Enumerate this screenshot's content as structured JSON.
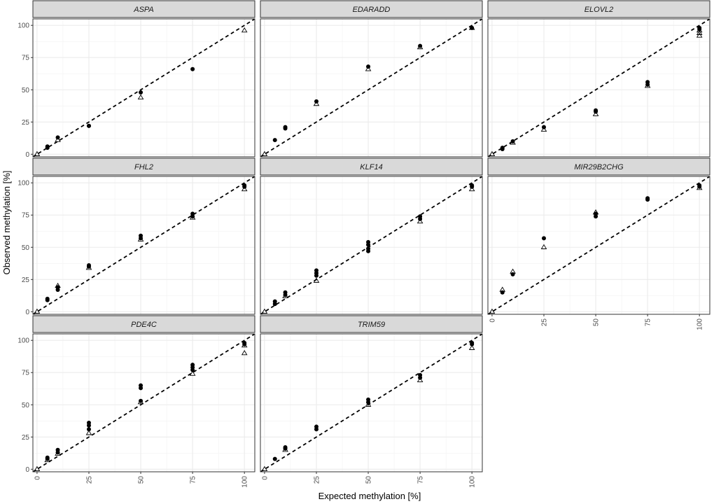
{
  "chart_data": {
    "type": "scatter",
    "xlabel": "Expected methylation [%]",
    "ylabel": "Observed methylation [%]",
    "x_ticks": [
      "0",
      "25",
      "50",
      "75",
      "100"
    ],
    "y_ticks": [
      "0",
      "25",
      "50",
      "75",
      "100"
    ],
    "xlim": [
      -2,
      105
    ],
    "ylim": [
      -2,
      105
    ],
    "grid": true,
    "reference_line": {
      "style": "dashed",
      "slope": 1,
      "intercept": 0
    },
    "marker_shapes": {
      "filled": "circle/triangle",
      "open": "triangle"
    },
    "panels": [
      {
        "title": "ASPA",
        "points": [
          [
            0,
            0,
            "open"
          ],
          [
            5,
            6,
            "filled"
          ],
          [
            5,
            5,
            "filled"
          ],
          [
            10,
            13,
            "filled"
          ],
          [
            10,
            11,
            "open"
          ],
          [
            25,
            22,
            "filled"
          ],
          [
            25,
            22,
            "filled"
          ],
          [
            50,
            48,
            "filled"
          ],
          [
            50,
            44,
            "open"
          ],
          [
            75,
            66,
            "filled"
          ],
          [
            100,
            96,
            "open"
          ]
        ]
      },
      {
        "title": "EDARADD",
        "points": [
          [
            0,
            0,
            "open"
          ],
          [
            5,
            11,
            "filled"
          ],
          [
            10,
            21,
            "filled"
          ],
          [
            10,
            20,
            "filled"
          ],
          [
            25,
            41,
            "filled"
          ],
          [
            25,
            39,
            "open"
          ],
          [
            50,
            68,
            "filled"
          ],
          [
            50,
            66,
            "open"
          ],
          [
            75,
            84,
            "filled"
          ],
          [
            75,
            83,
            "open"
          ],
          [
            100,
            98,
            "filled"
          ],
          [
            100,
            98,
            "open"
          ]
        ]
      },
      {
        "title": "ELOVL2",
        "points": [
          [
            0,
            0,
            "open"
          ],
          [
            5,
            5,
            "filled"
          ],
          [
            5,
            4,
            "filled"
          ],
          [
            10,
            10,
            "filled"
          ],
          [
            10,
            9,
            "open"
          ],
          [
            25,
            21,
            "filled"
          ],
          [
            25,
            19,
            "open"
          ],
          [
            50,
            34,
            "filled"
          ],
          [
            50,
            33,
            "filled"
          ],
          [
            50,
            31,
            "open"
          ],
          [
            75,
            56,
            "filled"
          ],
          [
            75,
            54,
            "filled"
          ],
          [
            75,
            53,
            "open"
          ],
          [
            100,
            98,
            "filled"
          ],
          [
            100,
            97,
            "filled"
          ],
          [
            100,
            96,
            "open"
          ],
          [
            100,
            94,
            "open"
          ],
          [
            100,
            92,
            "open"
          ]
        ]
      },
      {
        "title": "FHL2",
        "points": [
          [
            0,
            0,
            "open"
          ],
          [
            5,
            10,
            "filled"
          ],
          [
            5,
            9,
            "filled"
          ],
          [
            10,
            19,
            "filled"
          ],
          [
            10,
            17,
            "filled"
          ],
          [
            10,
            20,
            "open"
          ],
          [
            25,
            36,
            "filled"
          ],
          [
            25,
            35,
            "filled"
          ],
          [
            25,
            34,
            "open"
          ],
          [
            50,
            59,
            "filled"
          ],
          [
            50,
            57,
            "filled"
          ],
          [
            50,
            56,
            "open"
          ],
          [
            75,
            76,
            "filled"
          ],
          [
            75,
            74,
            "filled"
          ],
          [
            75,
            73,
            "open"
          ],
          [
            100,
            98,
            "filled"
          ],
          [
            100,
            97,
            "filled"
          ],
          [
            100,
            95,
            "open"
          ]
        ]
      },
      {
        "title": "KLF14",
        "points": [
          [
            0,
            0,
            "open"
          ],
          [
            5,
            8,
            "filled"
          ],
          [
            5,
            6,
            "filled"
          ],
          [
            10,
            15,
            "filled"
          ],
          [
            10,
            13,
            "filled"
          ],
          [
            10,
            12,
            "open"
          ],
          [
            25,
            32,
            "filled"
          ],
          [
            25,
            30,
            "filled"
          ],
          [
            25,
            28,
            "filled"
          ],
          [
            25,
            24,
            "open"
          ],
          [
            50,
            54,
            "filled"
          ],
          [
            50,
            52,
            "filled"
          ],
          [
            50,
            49,
            "filled"
          ],
          [
            50,
            47,
            "filled"
          ],
          [
            75,
            74,
            "filled"
          ],
          [
            75,
            72,
            "filled"
          ],
          [
            75,
            70,
            "open"
          ],
          [
            100,
            98,
            "filled"
          ],
          [
            100,
            97,
            "filled"
          ],
          [
            100,
            95,
            "open"
          ]
        ]
      },
      {
        "title": "MIR29B2CHG",
        "points": [
          [
            0,
            0,
            "open"
          ],
          [
            5,
            15,
            "filled"
          ],
          [
            5,
            17,
            "open"
          ],
          [
            10,
            29,
            "filled"
          ],
          [
            10,
            31,
            "open"
          ],
          [
            25,
            57,
            "filled"
          ],
          [
            25,
            50,
            "open"
          ],
          [
            50,
            74,
            "filled"
          ],
          [
            50,
            76,
            "filled"
          ],
          [
            50,
            77,
            "open"
          ],
          [
            75,
            87,
            "filled"
          ],
          [
            75,
            88,
            "filled"
          ],
          [
            100,
            98,
            "filled"
          ],
          [
            100,
            97,
            "filled"
          ],
          [
            100,
            96,
            "open"
          ]
        ]
      },
      {
        "title": "PDE4C",
        "points": [
          [
            0,
            0,
            "open"
          ],
          [
            5,
            9,
            "filled"
          ],
          [
            5,
            8,
            "filled"
          ],
          [
            5,
            7,
            "open"
          ],
          [
            10,
            15,
            "filled"
          ],
          [
            10,
            13,
            "filled"
          ],
          [
            10,
            12,
            "open"
          ],
          [
            25,
            36,
            "filled"
          ],
          [
            25,
            34,
            "filled"
          ],
          [
            25,
            31,
            "filled"
          ],
          [
            25,
            28,
            "open"
          ],
          [
            50,
            65,
            "filled"
          ],
          [
            50,
            63,
            "filled"
          ],
          [
            50,
            53,
            "filled"
          ],
          [
            50,
            52,
            "open"
          ],
          [
            75,
            81,
            "filled"
          ],
          [
            75,
            79,
            "filled"
          ],
          [
            75,
            77,
            "filled"
          ],
          [
            75,
            74,
            "open"
          ],
          [
            100,
            98,
            "filled"
          ],
          [
            100,
            97,
            "filled"
          ],
          [
            100,
            96,
            "open"
          ],
          [
            100,
            90,
            "open"
          ]
        ]
      },
      {
        "title": "TRIM59",
        "points": [
          [
            0,
            0,
            "open"
          ],
          [
            5,
            8,
            "filled"
          ],
          [
            10,
            17,
            "filled"
          ],
          [
            10,
            16,
            "filled"
          ],
          [
            10,
            15,
            "open"
          ],
          [
            25,
            33,
            "filled"
          ],
          [
            25,
            31,
            "filled"
          ],
          [
            50,
            54,
            "filled"
          ],
          [
            50,
            52,
            "filled"
          ],
          [
            50,
            50,
            "open"
          ],
          [
            75,
            73,
            "filled"
          ],
          [
            75,
            71,
            "filled"
          ],
          [
            75,
            69,
            "open"
          ],
          [
            100,
            98,
            "filled"
          ],
          [
            100,
            97,
            "filled"
          ],
          [
            100,
            94,
            "open"
          ]
        ]
      }
    ]
  }
}
